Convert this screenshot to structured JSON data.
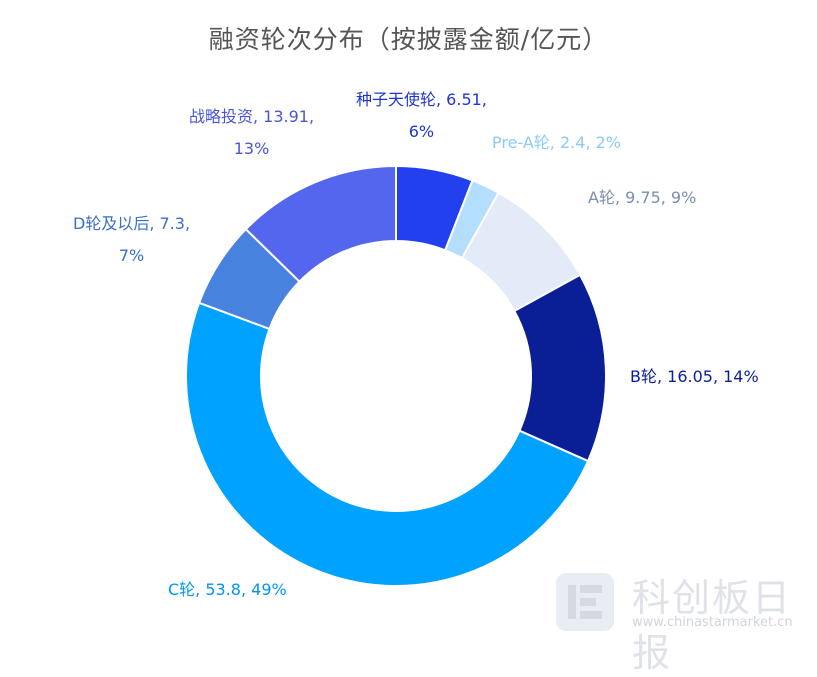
{
  "chart_data": {
    "type": "pie",
    "donut": true,
    "title": "融资轮次分布（按披露金额/亿元）",
    "slices": [
      {
        "name": "种子天使轮",
        "value": 6.51,
        "percent": "6%",
        "color": "#2240ee",
        "label_color": "#1f35d0",
        "label_line1": "种子天使轮, 6.51,",
        "label_line2": "6%"
      },
      {
        "name": "Pre-A轮",
        "value": 2.4,
        "percent": "2%",
        "color": "#b3dffd",
        "label_color": "#8ccbf5",
        "label_line1": "Pre-A轮, 2.4, 2%",
        "label_line2": ""
      },
      {
        "name": "A轮",
        "value": 9.75,
        "percent": "9%",
        "color": "#e3ebf8",
        "label_color": "#7a8fb3",
        "label_line1": "A轮, 9.75, 9%",
        "label_line2": ""
      },
      {
        "name": "B轮",
        "value": 16.05,
        "percent": "14%",
        "color": "#0a1f96",
        "label_color": "#0a1f96",
        "label_line1": "B轮, 16.05, 14%",
        "label_line2": ""
      },
      {
        "name": "C轮",
        "value": 53.8,
        "percent": "49%",
        "color": "#00a2ff",
        "label_color": "#0096ee",
        "label_line1": "C轮, 53.8, 49%",
        "label_line2": ""
      },
      {
        "name": "D轮及以后",
        "value": 7.3,
        "percent": "7%",
        "color": "#4682de",
        "label_color": "#3a6fc4",
        "label_line1": "D轮及以后, 7.3,",
        "label_line2": "7%"
      },
      {
        "name": "战略投资",
        "value": 13.91,
        "percent": "13%",
        "color": "#5566ee",
        "label_color": "#4a56d8",
        "label_line1": "战略投资, 13.91,",
        "label_line2": "13%"
      }
    ]
  },
  "watermark": {
    "text": "科创板日报",
    "url": "www.chinastarmarket.cn"
  }
}
